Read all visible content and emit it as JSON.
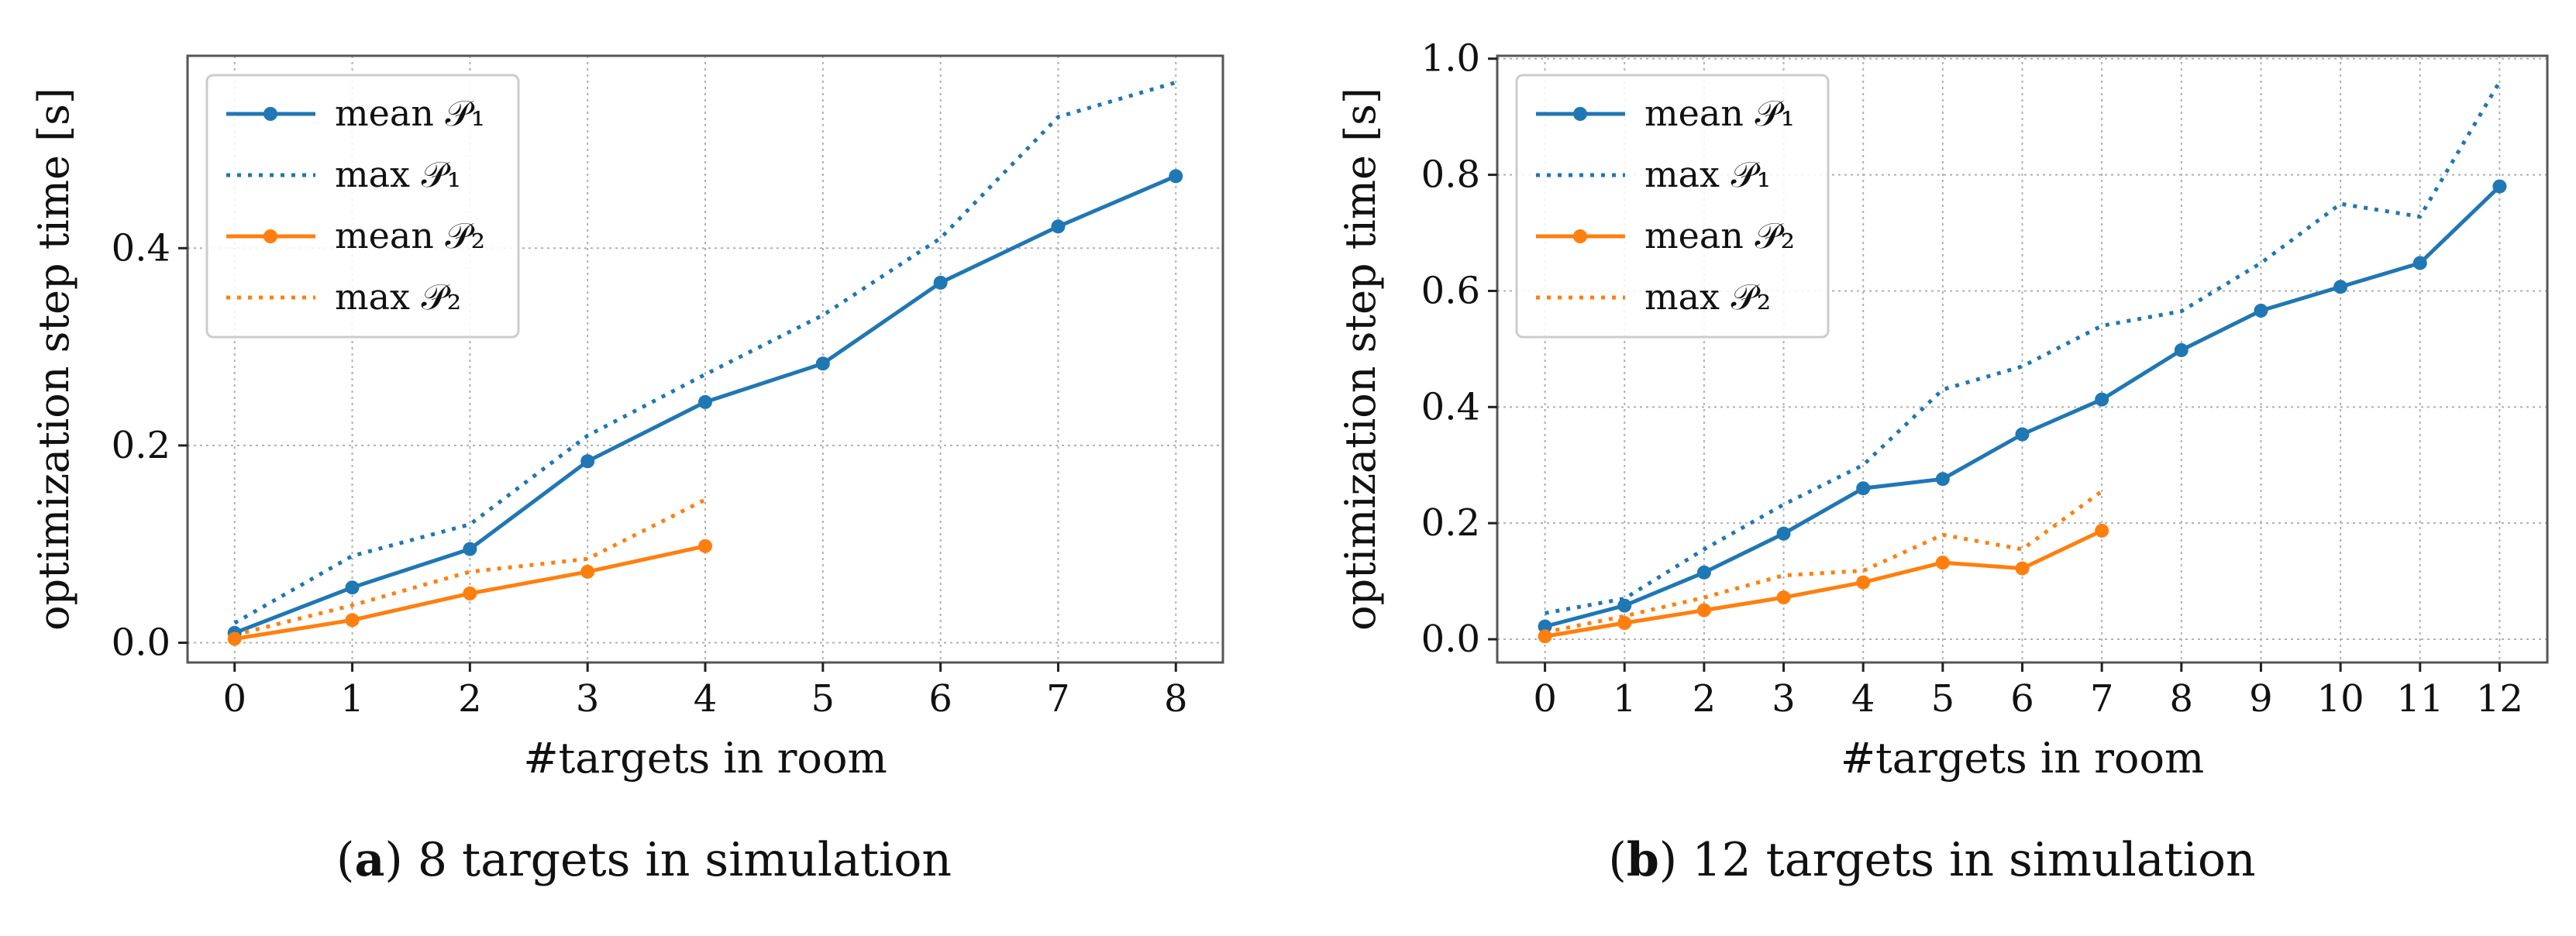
{
  "colors": {
    "blue": "#1f77b4",
    "orange": "#ff7f0e",
    "grid": "#b0b0b0",
    "frame": "#555555"
  },
  "panels": [
    {
      "caption": {
        "letter": "a",
        "text": "8 targets in simulation"
      },
      "chart_data": {
        "type": "line",
        "xlabel": "#targets in room",
        "ylabel": "optimization step time [s]",
        "xlim": [
          -0.4,
          8.4
        ],
        "ylim": [
          -0.02,
          0.595
        ],
        "xticks": [
          0,
          1,
          2,
          3,
          4,
          5,
          6,
          7,
          8
        ],
        "yticks": [
          0.0,
          0.2,
          0.4
        ],
        "ytick_labels": [
          "0.0",
          "0.2",
          "0.4"
        ],
        "grid": true,
        "legend_position": "top-left",
        "series": [
          {
            "name": "mean 𝒫₁",
            "color": "blue",
            "style": "solid-marker",
            "x": [
              0,
              1,
              2,
              3,
              4,
              5,
              6,
              7,
              8
            ],
            "values": [
              0.01,
              0.056,
              0.095,
              0.184,
              0.244,
              0.283,
              0.365,
              0.422,
              0.473
            ]
          },
          {
            "name": "max 𝒫₁",
            "color": "blue",
            "style": "dotted",
            "x": [
              0,
              1,
              2,
              3,
              4,
              5,
              6,
              7,
              8
            ],
            "values": [
              0.02,
              0.088,
              0.12,
              0.21,
              0.272,
              0.332,
              0.41,
              0.533,
              0.568
            ]
          },
          {
            "name": "mean 𝒫₂",
            "color": "orange",
            "style": "solid-marker",
            "x": [
              0,
              1,
              2,
              3,
              4
            ],
            "values": [
              0.004,
              0.023,
              0.05,
              0.072,
              0.098
            ]
          },
          {
            "name": "max 𝒫₂",
            "color": "orange",
            "style": "dotted",
            "x": [
              0,
              1,
              2,
              3,
              4
            ],
            "values": [
              0.008,
              0.038,
              0.072,
              0.085,
              0.145
            ]
          }
        ]
      }
    },
    {
      "caption": {
        "letter": "b",
        "text": "12 targets in simulation"
      },
      "chart_data": {
        "type": "line",
        "xlabel": "#targets in room",
        "ylabel": "optimization step time [s]",
        "xlim": [
          -0.6,
          12.6
        ],
        "ylim": [
          -0.04,
          1.005
        ],
        "xticks": [
          0,
          1,
          2,
          3,
          4,
          5,
          6,
          7,
          8,
          9,
          10,
          11,
          12
        ],
        "yticks": [
          0.0,
          0.2,
          0.4,
          0.6,
          0.8,
          1.0
        ],
        "ytick_labels": [
          "0.0",
          "0.2",
          "0.4",
          "0.6",
          "0.8",
          "1.0"
        ],
        "grid": true,
        "legend_position": "top-left",
        "series": [
          {
            "name": "mean 𝒫₁",
            "color": "blue",
            "style": "solid-marker",
            "x": [
              0,
              1,
              2,
              3,
              4,
              5,
              6,
              7,
              8,
              9,
              10,
              11,
              12
            ],
            "values": [
              0.022,
              0.058,
              0.115,
              0.182,
              0.26,
              0.276,
              0.353,
              0.413,
              0.498,
              0.566,
              0.607,
              0.648,
              0.78
            ]
          },
          {
            "name": "max 𝒫₁",
            "color": "blue",
            "style": "dotted",
            "x": [
              0,
              1,
              2,
              3,
              4,
              5,
              6,
              7,
              8,
              9,
              10,
              11,
              12
            ],
            "values": [
              0.045,
              0.07,
              0.155,
              0.232,
              0.3,
              0.43,
              0.47,
              0.54,
              0.565,
              0.648,
              0.75,
              0.728,
              0.96
            ]
          },
          {
            "name": "mean 𝒫₂",
            "color": "orange",
            "style": "solid-marker",
            "x": [
              0,
              1,
              2,
              3,
              4,
              5,
              6,
              7
            ],
            "values": [
              0.005,
              0.028,
              0.05,
              0.072,
              0.098,
              0.132,
              0.122,
              0.187
            ]
          },
          {
            "name": "max 𝒫₂",
            "color": "orange",
            "style": "dotted",
            "x": [
              0,
              1,
              2,
              3,
              4,
              5,
              6,
              7
            ],
            "values": [
              0.012,
              0.04,
              0.072,
              0.11,
              0.118,
              0.18,
              0.155,
              0.255
            ]
          }
        ]
      }
    }
  ]
}
